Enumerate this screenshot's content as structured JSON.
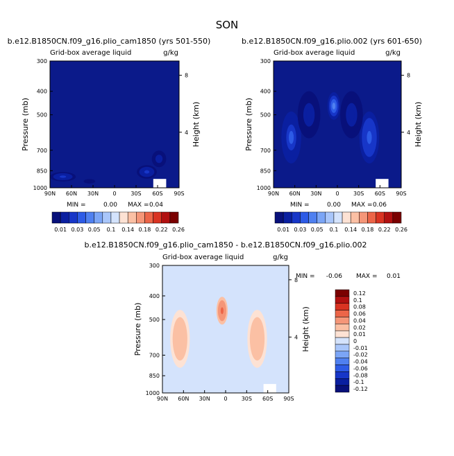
{
  "page_title": "SON",
  "colors": {
    "background": "#ffffff",
    "navy": "#0b1a8a",
    "seq_palette": [
      "#08107a",
      "#0a1fa0",
      "#1736c8",
      "#2d5be6",
      "#4f80f0",
      "#7ba5f6",
      "#a9c6fa",
      "#d4e3fc",
      "#fde2d4",
      "#fbc0a4",
      "#f59678",
      "#ec6548",
      "#d93322",
      "#b11010",
      "#7a0000"
    ],
    "div_palette": [
      "#08107a",
      "#0a1fa0",
      "#1736c8",
      "#2d5be6",
      "#4f80f0",
      "#7ba5f6",
      "#a9c6fa",
      "#d4e3fc",
      "#fde2d4",
      "#fbc0a4",
      "#f59678",
      "#ec6548",
      "#d93322",
      "#b11010",
      "#7a0000"
    ]
  },
  "chart_data": [
    {
      "type": "heatmap",
      "title": "b.e12.B1850CN.f09_g16.plio_cam1850 (yrs 501-550)",
      "subtitle_left": "Grid-box average liquid",
      "subtitle_right": "g/kg",
      "ylabel": "Pressure (mb)",
      "ylabel_right": "Height (km)",
      "x_ticks": [
        "90N",
        "60N",
        "30N",
        "0",
        "30S",
        "60S",
        "90S"
      ],
      "y_ticks": [
        "300",
        "400",
        "500",
        "700",
        "850",
        "1000"
      ],
      "y_ticks_values": [
        300,
        400,
        500,
        700,
        850,
        1000
      ],
      "right_ticks": [
        "8",
        "4"
      ],
      "right_ticks_values": [
        8,
        4
      ],
      "ylim": [
        300,
        1000
      ],
      "xlim": [
        90,
        -90
      ],
      "grid": false,
      "min_label": "MIN =",
      "min_value": "0.00",
      "max_label": "MAX =",
      "max_value": "0.04",
      "colorbar_labels": [
        "0.01",
        "0.03",
        "0.05",
        "0.1",
        "0.14",
        "0.18",
        "0.22",
        "0.26"
      ],
      "colorbar_levels": [
        0.01,
        0.02,
        0.03,
        0.04,
        0.05,
        0.06,
        0.08,
        0.1,
        0.12,
        0.14,
        0.16,
        0.18,
        0.2,
        0.22,
        0.24,
        0.26
      ],
      "legend": "bottom",
      "features": [
        {
          "lat": 72,
          "p": 900,
          "width_lat": 18,
          "depth_p": 80,
          "value": 0.025
        },
        {
          "lat": 35,
          "p": 940,
          "width_lat": 8,
          "depth_p": 40,
          "value": 0.012
        },
        {
          "lat": -45,
          "p": 860,
          "width_lat": 14,
          "depth_p": 110,
          "value": 0.03
        },
        {
          "lat": -62,
          "p": 760,
          "width_lat": 10,
          "depth_p": 120,
          "value": 0.02
        }
      ]
    },
    {
      "type": "heatmap",
      "title": "b.e12.B1850CN.f09_g16.plio.002 (yrs 601-650)",
      "subtitle_left": "Grid-box average liquid",
      "subtitle_right": "g/kg",
      "ylabel": "Pressure (mb)",
      "ylabel_right": "Height (km)",
      "x_ticks": [
        "90N",
        "60N",
        "30N",
        "0",
        "30S",
        "60S",
        "90S"
      ],
      "y_ticks": [
        "300",
        "400",
        "500",
        "700",
        "850",
        "1000"
      ],
      "y_ticks_values": [
        300,
        400,
        500,
        700,
        850,
        1000
      ],
      "right_ticks": [
        "8",
        "4"
      ],
      "right_ticks_values": [
        8,
        4
      ],
      "ylim": [
        300,
        1000
      ],
      "xlim": [
        90,
        -90
      ],
      "grid": false,
      "min_label": "MIN =",
      "min_value": "0.00",
      "max_label": "MAX =",
      "max_value": "0.06",
      "colorbar_labels": [
        "0.01",
        "0.03",
        "0.05",
        "0.1",
        "0.14",
        "0.18",
        "0.22",
        "0.26"
      ],
      "colorbar_levels": [
        0.01,
        0.02,
        0.03,
        0.04,
        0.05,
        0.06,
        0.08,
        0.1,
        0.12,
        0.14,
        0.16,
        0.18,
        0.2,
        0.22,
        0.24,
        0.26
      ],
      "legend": "bottom",
      "features": [
        {
          "lat": 65,
          "p": 620,
          "width_lat": 14,
          "depth_p": 300,
          "value": 0.04
        },
        {
          "lat": 5,
          "p": 460,
          "width_lat": 9,
          "depth_p": 120,
          "value": 0.06
        },
        {
          "lat": -45,
          "p": 620,
          "width_lat": 14,
          "depth_p": 300,
          "value": 0.045
        },
        {
          "lat": 40,
          "p": 500,
          "width_lat": 16,
          "depth_p": 220,
          "value": 0.02
        },
        {
          "lat": -20,
          "p": 500,
          "width_lat": 16,
          "depth_p": 220,
          "value": 0.02
        }
      ]
    },
    {
      "type": "heatmap",
      "title": "b.e12.B1850CN.f09_g16.plio_cam1850 - b.e12.B1850CN.f09_g16.plio.002",
      "subtitle_left": "Grid-box average liquid",
      "subtitle_right": "g/kg",
      "ylabel": "Pressure (mb)",
      "ylabel_right": "Height (km)",
      "x_ticks": [
        "90N",
        "60N",
        "30N",
        "0",
        "30S",
        "60S",
        "90S"
      ],
      "y_ticks": [
        "300",
        "400",
        "500",
        "700",
        "850",
        "1000"
      ],
      "y_ticks_values": [
        300,
        400,
        500,
        700,
        850,
        1000
      ],
      "right_ticks": [
        "8",
        "4"
      ],
      "right_ticks_values": [
        8,
        4
      ],
      "ylim": [
        300,
        1000
      ],
      "xlim": [
        90,
        -90
      ],
      "grid": false,
      "min_label": "MIN =",
      "min_value": "-0.06",
      "max_label": "MAX =",
      "max_value": "0.01",
      "colorbar_labels": [
        "0.12",
        "0.1",
        "0.08",
        "0.06",
        "0.04",
        "0.02",
        "0.01",
        "0",
        "-0.01",
        "-0.02",
        "-0.04",
        "-0.06",
        "-0.08",
        "-0.1",
        "-0.12"
      ],
      "colorbar_levels": [
        0.12,
        0.1,
        0.08,
        0.06,
        0.04,
        0.02,
        0.01,
        0,
        -0.01,
        -0.02,
        -0.04,
        -0.06,
        -0.08,
        -0.1,
        -0.12
      ],
      "legend": "right",
      "features": [
        {
          "lat": 65,
          "p": 600,
          "width_lat": 14,
          "depth_p": 320,
          "value": -0.02
        },
        {
          "lat": 5,
          "p": 460,
          "width_lat": 8,
          "depth_p": 120,
          "value": -0.05
        },
        {
          "lat": -45,
          "p": 600,
          "width_lat": 14,
          "depth_p": 320,
          "value": -0.02
        },
        {
          "lat": -30,
          "p": 900,
          "width_lat": 14,
          "depth_p": 60,
          "value": 0.01
        }
      ]
    }
  ]
}
